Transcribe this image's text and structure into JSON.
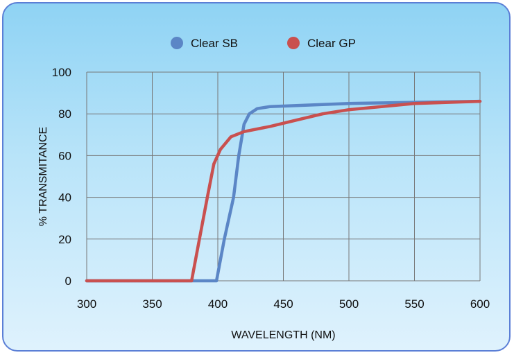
{
  "chart_data": {
    "type": "line",
    "title": "",
    "xlabel": "WAVELENGTH (NM)",
    "ylabel": "% TRANSMITANCE",
    "xlim": [
      300,
      600
    ],
    "ylim": [
      0,
      100
    ],
    "xticks": [
      300,
      350,
      400,
      450,
      500,
      550,
      600
    ],
    "yticks": [
      0,
      20,
      40,
      60,
      80,
      100
    ],
    "grid": true,
    "legend_position": "top",
    "series": [
      {
        "name": "Clear SB",
        "color": "#5b86c6",
        "points": [
          [
            300,
            0
          ],
          [
            350,
            0
          ],
          [
            380,
            0
          ],
          [
            399,
            0
          ],
          [
            405,
            20
          ],
          [
            412,
            40
          ],
          [
            416,
            60
          ],
          [
            420,
            75
          ],
          [
            424,
            80
          ],
          [
            430,
            82.5
          ],
          [
            440,
            83.5
          ],
          [
            460,
            84
          ],
          [
            500,
            85
          ],
          [
            550,
            85.5
          ],
          [
            600,
            86
          ]
        ]
      },
      {
        "name": "Clear GP",
        "color": "#c9504f",
        "points": [
          [
            300,
            0
          ],
          [
            350,
            0
          ],
          [
            370,
            0
          ],
          [
            380,
            0
          ],
          [
            386,
            20
          ],
          [
            392,
            40
          ],
          [
            397,
            56
          ],
          [
            402,
            63
          ],
          [
            410,
            69
          ],
          [
            420,
            71.5
          ],
          [
            440,
            74
          ],
          [
            460,
            77
          ],
          [
            480,
            80
          ],
          [
            500,
            82
          ],
          [
            550,
            85
          ],
          [
            600,
            86
          ]
        ]
      }
    ]
  }
}
